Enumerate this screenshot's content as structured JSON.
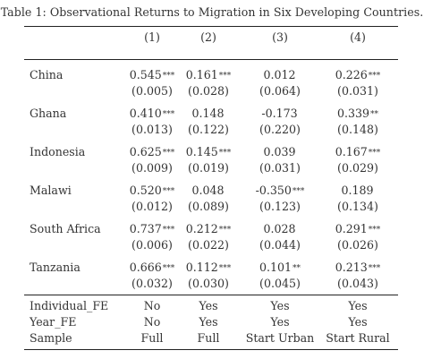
{
  "caption": "Table 1: Observational Returns to Migration in Six Developing Countries.",
  "columns": [
    "(1)",
    "(2)",
    "(3)",
    "(4)"
  ],
  "rows": [
    {
      "label": "China",
      "coef": [
        [
          "0.545",
          "***"
        ],
        [
          "0.161",
          "***"
        ],
        [
          "0.012",
          ""
        ],
        [
          "0.226",
          "***"
        ]
      ],
      "se": [
        "(0.005)",
        "(0.028)",
        "(0.064)",
        "(0.031)"
      ]
    },
    {
      "label": "Ghana",
      "coef": [
        [
          "0.410",
          "***"
        ],
        [
          "0.148",
          ""
        ],
        [
          "-0.173",
          ""
        ],
        [
          "0.339",
          "**"
        ]
      ],
      "se": [
        "(0.013)",
        "(0.122)",
        "(0.220)",
        "(0.148)"
      ]
    },
    {
      "label": "Indonesia",
      "coef": [
        [
          "0.625",
          "***"
        ],
        [
          "0.145",
          "***"
        ],
        [
          "0.039",
          ""
        ],
        [
          "0.167",
          "***"
        ]
      ],
      "se": [
        "(0.009)",
        "(0.019)",
        "(0.031)",
        "(0.029)"
      ]
    },
    {
      "label": "Malawi",
      "coef": [
        [
          "0.520",
          "***"
        ],
        [
          "0.048",
          ""
        ],
        [
          "-0.350",
          "***"
        ],
        [
          "0.189",
          ""
        ]
      ],
      "se": [
        "(0.012)",
        "(0.089)",
        "(0.123)",
        "(0.134)"
      ]
    },
    {
      "label": "South Africa",
      "coef": [
        [
          "0.737",
          "***"
        ],
        [
          "0.212",
          "***"
        ],
        [
          "0.028",
          ""
        ],
        [
          "0.291",
          "***"
        ]
      ],
      "se": [
        "(0.006)",
        "(0.022)",
        "(0.044)",
        "(0.026)"
      ]
    },
    {
      "label": "Tanzania",
      "coef": [
        [
          "0.666",
          "***"
        ],
        [
          "0.112",
          "***"
        ],
        [
          "0.101",
          "**"
        ],
        [
          "0.213",
          "***"
        ]
      ],
      "se": [
        "(0.032)",
        "(0.030)",
        "(0.045)",
        "(0.043)"
      ]
    }
  ],
  "footer": [
    {
      "label": "Individual_FE",
      "values": [
        "No",
        "Yes",
        "Yes",
        "Yes"
      ]
    },
    {
      "label": "Year_FE",
      "values": [
        "No",
        "Yes",
        "Yes",
        "Yes"
      ]
    },
    {
      "label": "Sample",
      "values": [
        "Full",
        "Full",
        "Start Urban",
        "Start Rural"
      ]
    }
  ]
}
